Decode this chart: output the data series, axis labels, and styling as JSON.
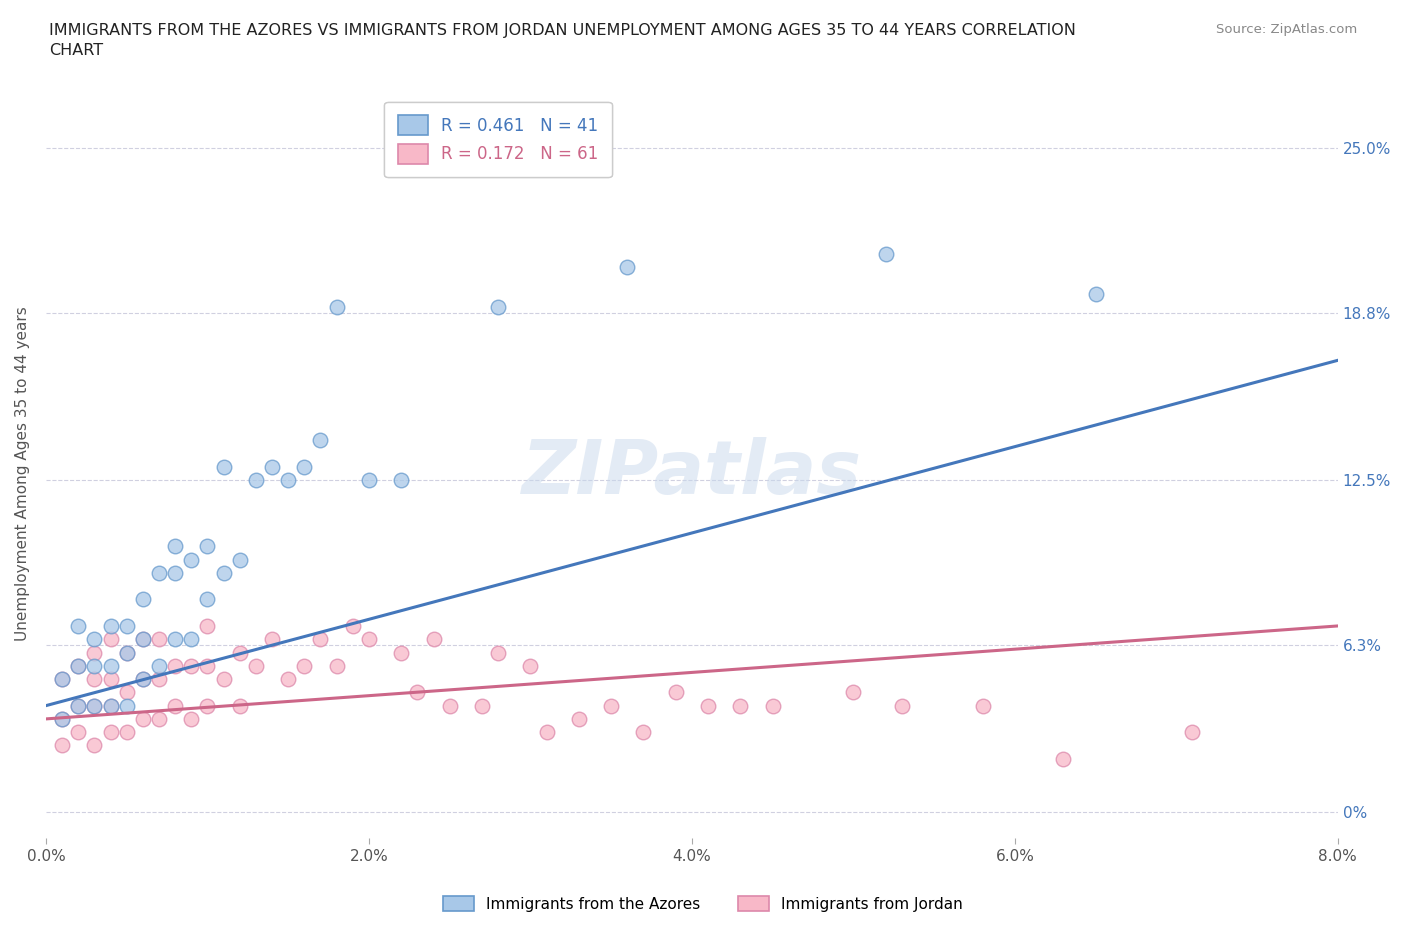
{
  "title": "IMMIGRANTS FROM THE AZORES VS IMMIGRANTS FROM JORDAN UNEMPLOYMENT AMONG AGES 35 TO 44 YEARS CORRELATION\nCHART",
  "source": "Source: ZipAtlas.com",
  "ylabel": "Unemployment Among Ages 35 to 44 years",
  "xlim": [
    0.0,
    0.08
  ],
  "ylim": [
    -0.01,
    0.265
  ],
  "yticks": [
    0.0,
    0.063,
    0.125,
    0.188,
    0.25
  ],
  "ytick_labels": [
    "0%",
    "6.3%",
    "12.5%",
    "18.8%",
    "25.0%"
  ],
  "xticks": [
    0.0,
    0.02,
    0.04,
    0.06,
    0.08
  ],
  "xtick_labels": [
    "0.0%",
    "2.0%",
    "4.0%",
    "6.0%",
    "8.0%"
  ],
  "legend1_label": "R = 0.461   N = 41",
  "legend2_label": "R = 0.172   N = 61",
  "legend_label_azores": "Immigrants from the Azores",
  "legend_label_jordan": "Immigrants from Jordan",
  "color_blue": "#a8c8e8",
  "color_blue_edge": "#6699cc",
  "color_blue_line": "#4477bb",
  "color_pink": "#f8b8c8",
  "color_pink_edge": "#dd88aa",
  "color_pink_line": "#cc6688",
  "color_grid": "#d0d0e0",
  "background_color": "#ffffff",
  "watermark": "ZIPatlas",
  "blue_scatter_x": [
    0.001,
    0.001,
    0.002,
    0.002,
    0.002,
    0.003,
    0.003,
    0.003,
    0.004,
    0.004,
    0.004,
    0.005,
    0.005,
    0.005,
    0.006,
    0.006,
    0.006,
    0.007,
    0.007,
    0.008,
    0.008,
    0.008,
    0.009,
    0.009,
    0.01,
    0.01,
    0.011,
    0.011,
    0.012,
    0.013,
    0.014,
    0.015,
    0.016,
    0.017,
    0.018,
    0.02,
    0.022,
    0.028,
    0.036,
    0.052,
    0.065
  ],
  "blue_scatter_y": [
    0.035,
    0.05,
    0.04,
    0.055,
    0.07,
    0.04,
    0.055,
    0.065,
    0.04,
    0.055,
    0.07,
    0.04,
    0.06,
    0.07,
    0.05,
    0.065,
    0.08,
    0.055,
    0.09,
    0.065,
    0.09,
    0.1,
    0.065,
    0.095,
    0.08,
    0.1,
    0.09,
    0.13,
    0.095,
    0.125,
    0.13,
    0.125,
    0.13,
    0.14,
    0.19,
    0.125,
    0.125,
    0.19,
    0.205,
    0.21,
    0.195
  ],
  "pink_scatter_x": [
    0.001,
    0.001,
    0.001,
    0.002,
    0.002,
    0.002,
    0.003,
    0.003,
    0.003,
    0.003,
    0.004,
    0.004,
    0.004,
    0.004,
    0.005,
    0.005,
    0.005,
    0.006,
    0.006,
    0.006,
    0.007,
    0.007,
    0.007,
    0.008,
    0.008,
    0.009,
    0.009,
    0.01,
    0.01,
    0.01,
    0.011,
    0.012,
    0.012,
    0.013,
    0.014,
    0.015,
    0.016,
    0.017,
    0.018,
    0.019,
    0.02,
    0.022,
    0.023,
    0.024,
    0.025,
    0.027,
    0.028,
    0.03,
    0.031,
    0.033,
    0.035,
    0.037,
    0.039,
    0.041,
    0.043,
    0.045,
    0.05,
    0.053,
    0.058,
    0.063,
    0.071
  ],
  "pink_scatter_y": [
    0.025,
    0.035,
    0.05,
    0.03,
    0.04,
    0.055,
    0.025,
    0.04,
    0.05,
    0.06,
    0.03,
    0.04,
    0.05,
    0.065,
    0.03,
    0.045,
    0.06,
    0.035,
    0.05,
    0.065,
    0.035,
    0.05,
    0.065,
    0.04,
    0.055,
    0.035,
    0.055,
    0.04,
    0.055,
    0.07,
    0.05,
    0.04,
    0.06,
    0.055,
    0.065,
    0.05,
    0.055,
    0.065,
    0.055,
    0.07,
    0.065,
    0.06,
    0.045,
    0.065,
    0.04,
    0.04,
    0.06,
    0.055,
    0.03,
    0.035,
    0.04,
    0.03,
    0.045,
    0.04,
    0.04,
    0.04,
    0.045,
    0.04,
    0.04,
    0.02,
    0.03
  ],
  "blue_line_x0": 0.0,
  "blue_line_y0": 0.04,
  "blue_line_x1": 0.08,
  "blue_line_y1": 0.17,
  "pink_line_x0": 0.0,
  "pink_line_y0": 0.035,
  "pink_line_x1": 0.08,
  "pink_line_y1": 0.07
}
